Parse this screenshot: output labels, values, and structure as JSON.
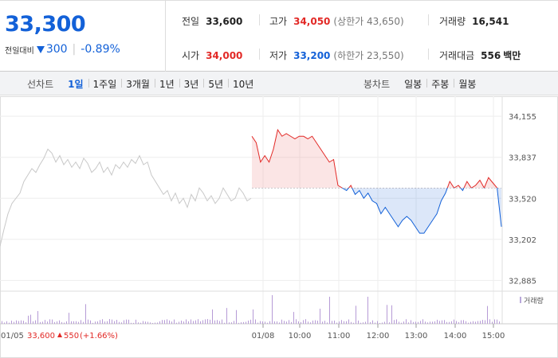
{
  "summary": {
    "current_price": "33,300",
    "change_label": "전일대비",
    "change_value": "300",
    "change_pct": "-0.89%",
    "prev_close_label": "전일",
    "prev_close": "33,600",
    "open_label": "시가",
    "open": "34,000",
    "high_label": "고가",
    "high": "34,050",
    "upper_limit": "(상한가 43,650)",
    "low_label": "저가",
    "low": "33,200",
    "lower_limit": "(하한가 23,550)",
    "volume_label": "거래량",
    "volume": "16,541",
    "amount_label": "거래대금",
    "amount": "556",
    "amount_unit": "백만"
  },
  "tabs": {
    "line_label": "선차트",
    "line_items": [
      "1일",
      "1주일",
      "3개월",
      "1년",
      "3년",
      "5년",
      "10년"
    ],
    "line_active": 0,
    "candle_label": "봉차트",
    "candle_items": [
      "일봉",
      "주봉",
      "월봉"
    ]
  },
  "colors": {
    "up": "#e22926",
    "down": "#1361d8",
    "prev_day": "#c8c8c8",
    "volume": "#b9a8db"
  },
  "chart_data": {
    "type": "line",
    "y_ticks": [
      34155,
      33837,
      33520,
      33202,
      32885
    ],
    "y_tick_labels": [
      "34,155",
      "33,837",
      "33,520",
      "33,202",
      "32,885"
    ],
    "ylim": [
      32820,
      34260
    ],
    "baseline": 33600,
    "x_tick_labels": [
      "01/05",
      "01/08",
      "10:00",
      "11:00",
      "12:00",
      "13:00",
      "14:00",
      "15:00"
    ],
    "prev_day_footer": {
      "date": "01/05",
      "close": "33,600",
      "change": "550",
      "pct": "(+1.66%)"
    },
    "volume_legend": "거래량",
    "prev_day_series": [
      33150,
      33280,
      33400,
      33480,
      33520,
      33560,
      33650,
      33700,
      33750,
      33720,
      33780,
      33830,
      33900,
      33870,
      33800,
      33850,
      33780,
      33820,
      33760,
      33800,
      33750,
      33830,
      33790,
      33720,
      33750,
      33800,
      33720,
      33760,
      33700,
      33780,
      33750,
      33800,
      33760,
      33820,
      33790,
      33850,
      33780,
      33800,
      33700,
      33650,
      33600,
      33550,
      33580,
      33500,
      33560,
      33480,
      33520,
      33450,
      33550,
      33500,
      33600,
      33560,
      33500,
      33540,
      33480,
      33520,
      33600,
      33550,
      33500,
      33520,
      33600,
      33560,
      33500,
      33520
    ],
    "today_series": [
      34000,
      33950,
      33800,
      33850,
      33800,
      33900,
      34050,
      34000,
      34020,
      34000,
      33980,
      34000,
      34000,
      33980,
      34000,
      33950,
      33900,
      33850,
      33800,
      33820,
      33620,
      33600,
      33580,
      33620,
      33550,
      33580,
      33520,
      33560,
      33500,
      33480,
      33400,
      33450,
      33400,
      33350,
      33300,
      33350,
      33380,
      33350,
      33300,
      33250,
      33250,
      33300,
      33350,
      33400,
      33500,
      33560,
      33650,
      33600,
      33620,
      33580,
      33650,
      33600,
      33620,
      33660,
      33600,
      33680,
      33640,
      33600,
      33300
    ]
  }
}
